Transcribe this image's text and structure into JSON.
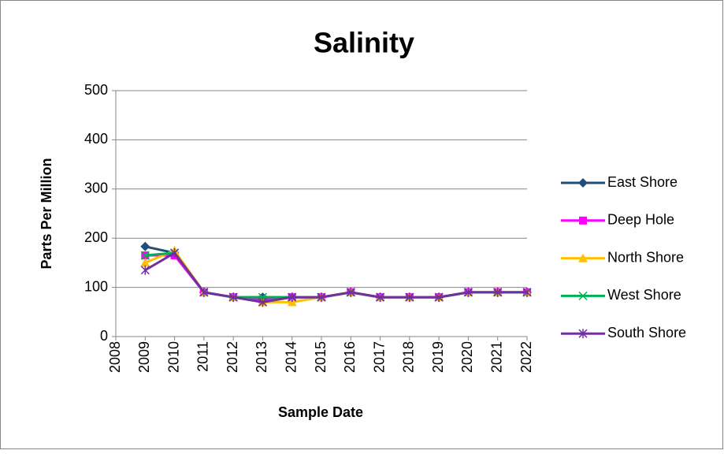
{
  "chart_data": {
    "type": "line",
    "title": "Salinity",
    "x_label": "Sample Date",
    "y_label": "Parts Per Million",
    "x": [
      2009,
      2010,
      2011,
      2012,
      2013,
      2014,
      2015,
      2016,
      2017,
      2018,
      2019,
      2020,
      2021,
      2022
    ],
    "xlim": [
      2008,
      2022
    ],
    "xticks": [
      2008,
      2009,
      2010,
      2011,
      2012,
      2013,
      2014,
      2015,
      2016,
      2017,
      2018,
      2019,
      2020,
      2021,
      2022
    ],
    "ylim": [
      0,
      500
    ],
    "yticks": [
      0,
      100,
      200,
      300,
      400,
      500
    ],
    "grid": true,
    "legend": "right",
    "series": [
      {
        "name": "East Shore",
        "color": "#1f4e79",
        "marker": "diamond",
        "values": [
          183,
          170,
          90,
          80,
          80,
          80,
          80,
          90,
          80,
          80,
          80,
          90,
          90,
          90
        ]
      },
      {
        "name": "Deep Hole",
        "color": "#ff00ff",
        "marker": "square",
        "values": [
          165,
          165,
          90,
          80,
          75,
          80,
          80,
          90,
          80,
          80,
          80,
          90,
          90,
          90
        ]
      },
      {
        "name": "North Shore",
        "color": "#ffc000",
        "marker": "triangle",
        "values": [
          150,
          175,
          90,
          80,
          70,
          70,
          80,
          90,
          80,
          80,
          80,
          90,
          90,
          90
        ]
      },
      {
        "name": "West Shore",
        "color": "#00b050",
        "marker": "x",
        "values": [
          165,
          170,
          90,
          80,
          80,
          80,
          80,
          90,
          80,
          80,
          80,
          90,
          90,
          90
        ]
      },
      {
        "name": "South Shore",
        "color": "#7030a0",
        "marker": "star",
        "values": [
          135,
          170,
          90,
          80,
          70,
          80,
          80,
          90,
          80,
          80,
          80,
          90,
          90,
          90
        ]
      }
    ]
  }
}
